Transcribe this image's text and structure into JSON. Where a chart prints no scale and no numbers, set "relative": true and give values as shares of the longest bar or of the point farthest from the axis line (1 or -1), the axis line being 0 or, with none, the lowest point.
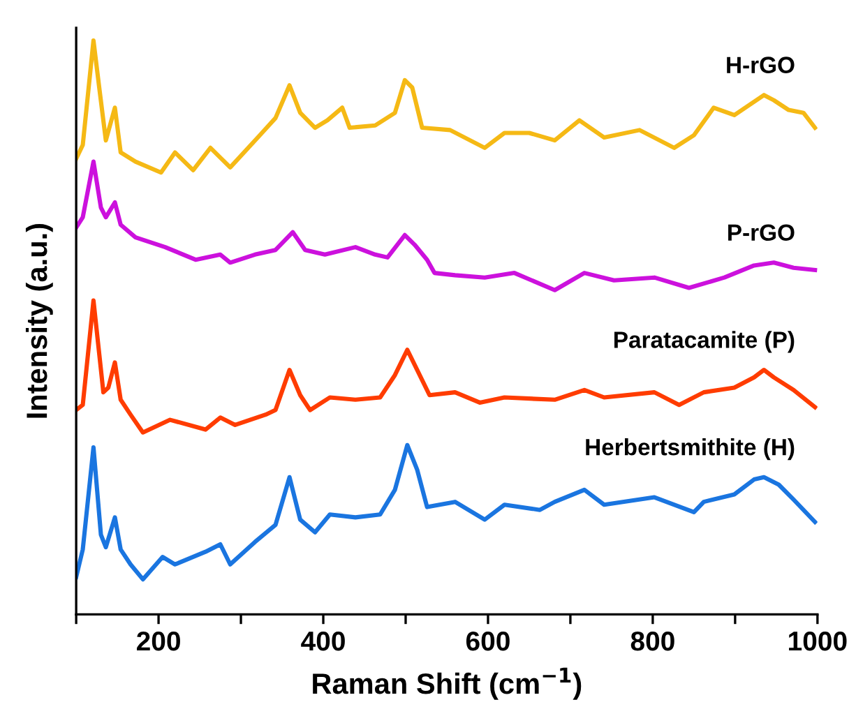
{
  "chart_data": {
    "type": "line",
    "xlabel": "Raman Shift (cm$^{−1}$)",
    "ylabel": "Intensity (a.u.)",
    "relative": true,
    "xlim": [
      100,
      1000
    ],
    "xticks": [
      {
        "value": 100,
        "label": null
      },
      200,
      {
        "value": 300,
        "label": null
      },
      400,
      {
        "value": 500,
        "label": null
      },
      600,
      {
        "value": 700,
        "label": null
      },
      800,
      {
        "value": 900,
        "label": null
      },
      1000
    ],
    "grid": false,
    "legend": false,
    "marker": "none",
    "line_style": "solid",
    "series": [
      {
        "name": "H-rGO",
        "color": "#f5b915",
        "x": [
          100,
          108,
          121,
          128,
          136,
          147,
          154,
          172,
          203,
          220,
          242,
          263,
          287,
          323,
          342,
          359,
          372,
          390,
          405,
          423,
          432,
          463,
          487,
          499,
          508,
          520,
          554,
          596,
          620,
          650,
          681,
          711,
          741,
          784,
          826,
          850,
          874,
          899,
          935,
          947,
          965,
          983,
          997
        ],
        "values": [
          0.794,
          0.818,
          1.0,
          0.918,
          0.826,
          0.883,
          0.805,
          0.789,
          0.77,
          0.805,
          0.774,
          0.813,
          0.779,
          0.835,
          0.865,
          0.922,
          0.874,
          0.848,
          0.861,
          0.883,
          0.848,
          0.852,
          0.874,
          0.931,
          0.918,
          0.848,
          0.844,
          0.813,
          0.839,
          0.839,
          0.826,
          0.861,
          0.831,
          0.844,
          0.813,
          0.835,
          0.883,
          0.87,
          0.905,
          0.896,
          0.879,
          0.874,
          0.848
        ]
      },
      {
        "name": "P-rGO",
        "color": "#cc11dd",
        "x": [
          100,
          108,
          121,
          130,
          136,
          147,
          154,
          172,
          208,
          245,
          275,
          287,
          317,
          342,
          363,
          378,
          402,
          439,
          463,
          478,
          499,
          511,
          526,
          535,
          560,
          596,
          632,
          681,
          717,
          753,
          802,
          844,
          887,
          923,
          947,
          971,
          997
        ],
        "values": [
          0.674,
          0.692,
          0.789,
          0.709,
          0.692,
          0.718,
          0.679,
          0.657,
          0.64,
          0.618,
          0.627,
          0.613,
          0.627,
          0.635,
          0.666,
          0.635,
          0.627,
          0.64,
          0.627,
          0.622,
          0.661,
          0.644,
          0.618,
          0.595,
          0.591,
          0.587,
          0.595,
          0.565,
          0.595,
          0.582,
          0.587,
          0.569,
          0.587,
          0.608,
          0.613,
          0.604,
          0.6
        ]
      },
      {
        "name": "Paratacamite (P)",
        "color": "#ff3c00",
        "x": [
          100,
          108,
          121,
          133,
          139,
          147,
          154,
          166,
          181,
          214,
          257,
          275,
          293,
          330,
          342,
          359,
          372,
          384,
          408,
          439,
          469,
          487,
          502,
          514,
          529,
          560,
          590,
          620,
          681,
          717,
          741,
          802,
          832,
          862,
          899,
          923,
          935,
          947,
          971,
          997
        ],
        "values": [
          0.356,
          0.365,
          0.547,
          0.387,
          0.395,
          0.439,
          0.374,
          0.348,
          0.317,
          0.339,
          0.322,
          0.343,
          0.33,
          0.348,
          0.356,
          0.426,
          0.382,
          0.356,
          0.378,
          0.374,
          0.378,
          0.417,
          0.461,
          0.426,
          0.382,
          0.387,
          0.369,
          0.378,
          0.374,
          0.391,
          0.378,
          0.387,
          0.365,
          0.387,
          0.395,
          0.413,
          0.426,
          0.413,
          0.391,
          0.361
        ]
      },
      {
        "name": "Herbertsmithite (H)",
        "color": "#1a75e0",
        "x": [
          100,
          108,
          121,
          130,
          136,
          147,
          154,
          166,
          181,
          205,
          220,
          257,
          275,
          287,
          317,
          342,
          359,
          372,
          390,
          408,
          439,
          469,
          487,
          502,
          514,
          526,
          560,
          596,
          620,
          663,
          681,
          717,
          741,
          802,
          850,
          862,
          899,
          923,
          935,
          953,
          971,
          997
        ],
        "values": [
          0.065,
          0.113,
          0.291,
          0.139,
          0.117,
          0.169,
          0.113,
          0.087,
          0.061,
          0.1,
          0.087,
          0.109,
          0.122,
          0.087,
          0.126,
          0.156,
          0.239,
          0.165,
          0.143,
          0.174,
          0.169,
          0.174,
          0.217,
          0.295,
          0.252,
          0.187,
          0.196,
          0.165,
          0.191,
          0.182,
          0.196,
          0.217,
          0.191,
          0.204,
          0.178,
          0.196,
          0.209,
          0.235,
          0.239,
          0.226,
          0.2,
          0.161
        ]
      }
    ]
  }
}
